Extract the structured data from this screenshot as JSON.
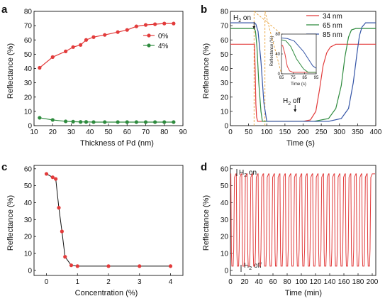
{
  "panels": {
    "a": {
      "letter": "a"
    },
    "b": {
      "letter": "b"
    },
    "c": {
      "letter": "c"
    },
    "d": {
      "letter": "d"
    }
  },
  "colors": {
    "red": "#e23b3b",
    "green": "#2e8b3e",
    "blue": "#3454a6",
    "inset_box": "#e8a33c"
  },
  "chart_data": [
    {
      "panel": "a",
      "type": "line",
      "xlabel": "Thickness of Pd (nm)",
      "ylabel": "Reflectance (%)",
      "xlim": [
        10,
        90
      ],
      "ylim": [
        0,
        80
      ],
      "xticks": [
        10,
        20,
        30,
        40,
        50,
        60,
        70,
        80,
        90
      ],
      "yticks": [
        0,
        10,
        20,
        30,
        40,
        50,
        60,
        70,
        80
      ],
      "legend_position": "right, middle",
      "series": [
        {
          "name": "0%",
          "color": "#e23b3b",
          "x": [
            13,
            20,
            27,
            31,
            35,
            38,
            42,
            48,
            55,
            60,
            65,
            70,
            75,
            80,
            85
          ],
          "y": [
            40.5,
            48,
            52,
            55,
            56.5,
            60,
            62,
            63.5,
            65.5,
            67,
            69.5,
            70.5,
            71,
            71.5,
            71.5
          ]
        },
        {
          "name": "4%",
          "color": "#2e8b3e",
          "x": [
            13,
            20,
            27,
            31,
            35,
            38,
            42,
            48,
            55,
            60,
            65,
            70,
            75,
            80,
            85
          ],
          "y": [
            5.5,
            4,
            3,
            2.8,
            2.6,
            2.6,
            2.5,
            2.5,
            2.5,
            2.5,
            2.5,
            2.5,
            2.5,
            2.5,
            2.5
          ]
        }
      ]
    },
    {
      "panel": "b",
      "type": "line",
      "xlabel": "Time (s)",
      "ylabel": "Reflectance (%)",
      "xlim": [
        0,
        400
      ],
      "ylim": [
        0,
        80
      ],
      "xticks": [
        0,
        50,
        100,
        150,
        200,
        250,
        300,
        350,
        400
      ],
      "yticks": [
        0,
        10,
        20,
        30,
        40,
        50,
        60,
        70,
        80
      ],
      "annotations": [
        {
          "text": "H",
          "sub": "2",
          "tail": " on",
          "x": 65
        },
        {
          "text": "H",
          "sub": "2",
          "tail": " off",
          "x": 178
        }
      ],
      "legend_position": "top-right",
      "series": [
        {
          "name": "34 nm",
          "color": "#e23b3b",
          "x": [
            0,
            66,
            68,
            70,
            72,
            75,
            200,
            220,
            235,
            245,
            255,
            265,
            275,
            290,
            400
          ],
          "y": [
            57,
            57,
            40,
            15,
            6,
            3,
            3,
            4,
            10,
            25,
            42,
            51,
            55,
            57,
            57
          ]
        },
        {
          "name": "65 nm",
          "color": "#2e8b3e",
          "x": [
            0,
            66,
            69,
            73,
            78,
            84,
            88,
            230,
            270,
            290,
            305,
            315,
            325,
            333,
            345,
            400
          ],
          "y": [
            68,
            68,
            66,
            55,
            30,
            10,
            3,
            3,
            5,
            12,
            28,
            48,
            62,
            67,
            68,
            68
          ]
        },
        {
          "name": "85 nm",
          "color": "#3454a6",
          "x": [
            0,
            66,
            70,
            76,
            84,
            92,
            100,
            270,
            305,
            325,
            338,
            348,
            355,
            362,
            372,
            400
          ],
          "y": [
            72,
            72,
            71,
            66,
            45,
            16,
            3,
            3,
            5,
            12,
            30,
            50,
            63,
            69,
            72,
            72
          ]
        }
      ],
      "inset": {
        "ylabel": "Reflectance (%)",
        "xlabel": "Time (s)",
        "xlim": [
          65,
          95
        ],
        "ylim": [
          0,
          80
        ],
        "xticks": [
          65,
          75,
          85,
          95
        ],
        "yticks": [
          0,
          40,
          80
        ]
      }
    },
    {
      "panel": "c",
      "type": "line",
      "xlabel": "Concentration (%)",
      "ylabel": "Reflectance (%)",
      "xlim": [
        -0.4,
        4.4
      ],
      "ylim": [
        -3,
        62
      ],
      "xticks": [
        0,
        1,
        2,
        3,
        4
      ],
      "yticks": [
        0,
        10,
        20,
        30,
        40,
        50,
        60
      ],
      "series": [
        {
          "name": "",
          "color": "#e23b3b",
          "x": [
            0,
            0.2,
            0.3,
            0.4,
            0.5,
            0.6,
            0.8,
            1,
            2,
            3,
            4
          ],
          "y": [
            57,
            55,
            54,
            37,
            23,
            8,
            3,
            2.5,
            2.5,
            2.5,
            2.5
          ]
        }
      ]
    },
    {
      "panel": "d",
      "type": "line",
      "xlabel": "Time (min)",
      "ylabel": "Reflectance (%)",
      "xlim": [
        0,
        205
      ],
      "ylim": [
        -3,
        62
      ],
      "xticks": [
        0,
        20,
        40,
        60,
        80,
        100,
        120,
        140,
        160,
        180,
        200
      ],
      "yticks": [
        0,
        10,
        20,
        30,
        40,
        50,
        60
      ],
      "cycles": 26,
      "high": 57,
      "low": 2.5,
      "annotations": [
        {
          "text": "H",
          "sub": "2",
          "tail": " on"
        },
        {
          "text": "H",
          "sub": "2",
          "tail": " off"
        }
      ]
    }
  ]
}
